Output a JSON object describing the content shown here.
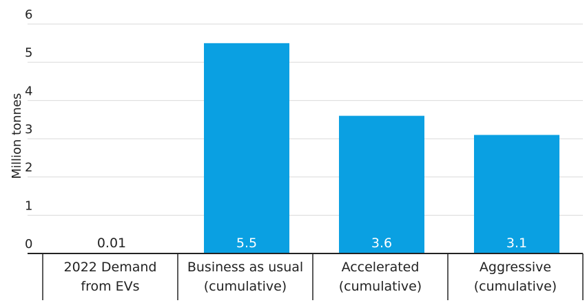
{
  "chart_data": {
    "type": "bar",
    "title": "",
    "xlabel": "",
    "ylabel": "Million tonnes",
    "ylim": [
      0,
      6
    ],
    "yticks": [
      "0",
      "1",
      "2",
      "3",
      "4",
      "5",
      "6"
    ],
    "categories": [
      [
        "2022 Demand",
        "from EVs"
      ],
      [
        "Business as usual",
        "(cumulative)"
      ],
      [
        "Accelerated",
        "(cumulative)"
      ],
      [
        "Aggressive",
        "(cumulative)"
      ]
    ],
    "values": [
      0.01,
      5.5,
      3.6,
      3.1
    ],
    "data_labels": [
      "0.01",
      "5.5",
      "3.6",
      "3.1"
    ],
    "grid": true,
    "legend": "none",
    "colors": {
      "bar": "#0aa0e2",
      "grid": "#d9d9d9",
      "axis": "#222222",
      "text": "#222222",
      "label_on_bar": "#ffffff",
      "label_off_bar": "#222222"
    }
  }
}
